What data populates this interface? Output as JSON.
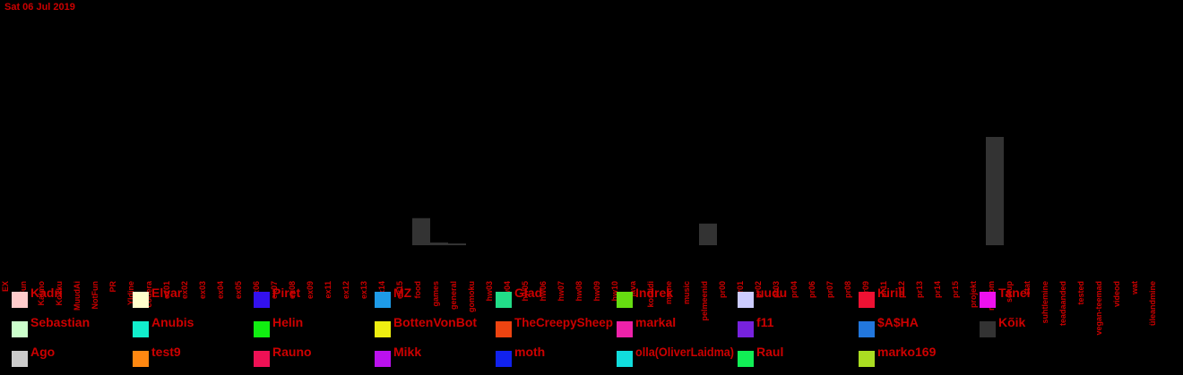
{
  "chart_data": {
    "type": "bar",
    "title": "Sat 06 Jul 2019",
    "xlabel": "",
    "ylabel": "",
    "ylim": [
      0,
      120
    ],
    "grid": false,
    "categories": [
      "EX",
      "Fun",
      "Kalmo",
      "Kokku",
      "MuudAi",
      "NotFun",
      "PR",
      "Yldine",
      "codera",
      "ex01",
      "ex02",
      "ex03",
      "ex04",
      "ex05",
      "ex06",
      "ex07",
      "ex08",
      "ex09",
      "ex11",
      "ex12",
      "ex13",
      "ex14",
      "ex15",
      "food",
      "games",
      "general",
      "gomoku",
      "hw03",
      "hw04",
      "hw05",
      "hw06",
      "hw07",
      "hw08",
      "hw09",
      "hw10",
      "java",
      "koraldi",
      "meme",
      "music",
      "pelmeenid",
      "pr00",
      "pr01",
      "pr02",
      "pr03",
      "pr04",
      "pr06",
      "pr07",
      "pr08",
      "pr09",
      "pr11",
      "pr12",
      "pr13",
      "pr14",
      "pr15",
      "projekt",
      "random",
      "setup",
      "stat",
      "suhtlemine",
      "teadaanded",
      "tested",
      "vegan-teemad",
      "videod",
      "wat",
      "üleandmine"
    ],
    "series": [
      {
        "name": "Kõik",
        "color": "#333333",
        "values": [
          0,
          0,
          0,
          0,
          0,
          0,
          0,
          0,
          0,
          0,
          0,
          0,
          0,
          0,
          0,
          0,
          0,
          0,
          0,
          0,
          0,
          0,
          0,
          30,
          3,
          2,
          0,
          0,
          0,
          0,
          0,
          0,
          0,
          0,
          0,
          0,
          0,
          0,
          0,
          24,
          0,
          0,
          0,
          0,
          0,
          0,
          0,
          0,
          0,
          0,
          0,
          0,
          0,
          0,
          0,
          120,
          0,
          0,
          0,
          0,
          0,
          0,
          0,
          0,
          0
        ]
      }
    ],
    "legend": {
      "position": "bottom",
      "entries": [
        {
          "name": "Kadri",
          "color": "#ffcccc"
        },
        {
          "name": "Elvar",
          "color": "#ffffcc"
        },
        {
          "name": "Piret",
          "color": "#3311ee"
        },
        {
          "name": "MZ",
          "color": "#1e9be8"
        },
        {
          "name": "Glad",
          "color": "#22dd88"
        },
        {
          "name": "Indrek",
          "color": "#66dd11"
        },
        {
          "name": "uudu",
          "color": "#ccccff"
        },
        {
          "name": "Kirill",
          "color": "#ee1133"
        },
        {
          "name": "Tanel",
          "color": "#ee11ee"
        },
        {
          "name": "Sebastian",
          "color": "#ccffcc"
        },
        {
          "name": "Anubis",
          "color": "#11eecc"
        },
        {
          "name": "Helin",
          "color": "#11ee11"
        },
        {
          "name": "BottenVonBot",
          "color": "#eeee11"
        },
        {
          "name": "TheCreepySheep",
          "color": "#ee4411"
        },
        {
          "name": "markal",
          "color": "#ee22aa"
        },
        {
          "name": "f11",
          "color": "#7722dd"
        },
        {
          "name": "$A$HA",
          "color": "#2277dd"
        },
        {
          "name": "Kõik",
          "color": "#333333"
        },
        {
          "name": "Ago",
          "color": "#cccccc"
        },
        {
          "name": "test9",
          "color": "#ff8811"
        },
        {
          "name": "Rauno",
          "color": "#ee1155"
        },
        {
          "name": "Mikk",
          "color": "#bb11ee"
        },
        {
          "name": "moth",
          "color": "#1122ee"
        },
        {
          "name": "olla(OliverLaidma)",
          "color": "#11dddd"
        },
        {
          "name": "Raul",
          "color": "#11ee55"
        },
        {
          "name": "marko169",
          "color": "#aadd22"
        }
      ]
    }
  }
}
